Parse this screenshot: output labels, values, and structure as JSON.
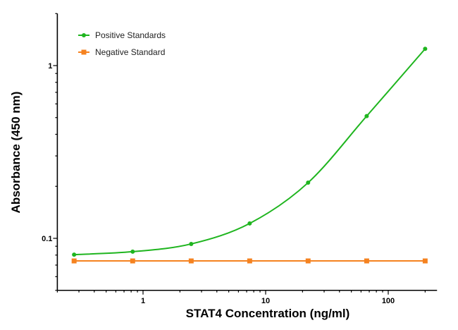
{
  "chart_data": {
    "type": "line",
    "title": "",
    "xlabel": "STAT4 Concentration (ng/ml)",
    "ylabel": "Absorbance (450 nm)",
    "xscale": "log",
    "yscale": "log",
    "xlim": [
      0.2,
      250
    ],
    "ylim": [
      0.05,
      2
    ],
    "xticks": [
      {
        "value": 1,
        "label": "1"
      },
      {
        "value": 10,
        "label": "10"
      },
      {
        "value": 100,
        "label": "100"
      }
    ],
    "yticks": [
      {
        "value": 0.1,
        "label": "0.1"
      },
      {
        "value": 1,
        "label": "1"
      }
    ],
    "grid": false,
    "legend_position": "top-left",
    "x": [
      0.274,
      0.823,
      2.47,
      7.41,
      22.2,
      66.7,
      200
    ],
    "series": [
      {
        "name": "Positive Standards",
        "color": "#1fb51f",
        "marker": "circle",
        "values": [
          0.0805,
          0.0837,
          0.0928,
          0.122,
          0.21,
          0.51,
          1.25
        ]
      },
      {
        "name": "Negative Standard",
        "color": "#f58220",
        "marker": "square",
        "values": [
          0.074,
          0.074,
          0.074,
          0.074,
          0.074,
          0.074,
          0.074
        ]
      }
    ]
  }
}
